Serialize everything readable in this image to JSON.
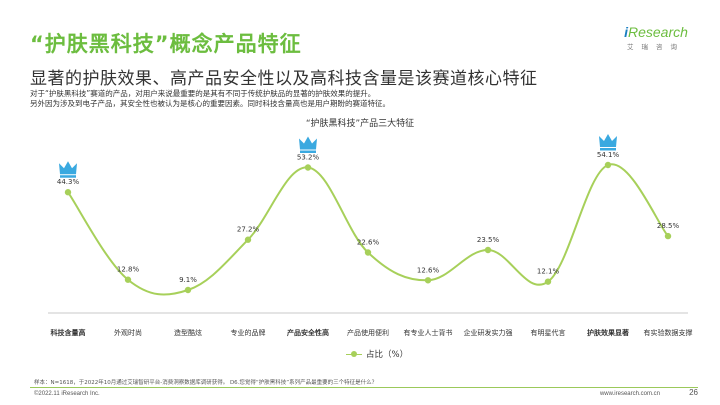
{
  "header": {
    "title": "“护肤黑科技”概念产品特征",
    "subtitle": "显著的护肤效果、高产品安全性以及高科技含量是该赛道核心特征",
    "description": [
      "对于“护肤黑科技”赛道的产品，对用户来说最重要的是其有不同于传统护肤品的显著的护肤效果的提升。",
      "另外因为涉及到电子产品，其安全性也被认为是核心的重要因素。同时科技含量高也是用户期盼的赛道特征。"
    ]
  },
  "logo": {
    "brand_i": "i",
    "brand_rest": "Research",
    "sub": "艾瑞咨询"
  },
  "colors": {
    "accent": "#6cbd3f",
    "line": "#a7d05a",
    "crown": "#3aa9e0"
  },
  "chart_data": {
    "type": "line",
    "title": "“护肤黑科技”产品三大特征",
    "categories": [
      "科技含量高",
      "外观时尚",
      "造型酷炫",
      "专业的品牌",
      "产品安全性高",
      "产品使用便利",
      "有专业人士背书",
      "企业研发实力强",
      "有明星代言",
      "护肤效果显著",
      "有实验数据支撑"
    ],
    "bold_categories": [
      0,
      4,
      9
    ],
    "crown_indices": [
      0,
      4,
      9
    ],
    "crown_icon": "crown-icon",
    "series": [
      {
        "name": "占比（%）",
        "values": [
          44.3,
          12.8,
          9.1,
          27.2,
          53.2,
          22.6,
          12.6,
          23.5,
          12.1,
          54.1,
          28.5
        ],
        "labels": [
          "44.3%",
          "12.8%",
          "9.1%",
          "27.2%",
          "53.2%",
          "22.6%",
          "12.6%",
          "23.5%",
          "12.1%",
          "54.1%",
          "28.5%"
        ]
      }
    ],
    "ylim": [
      0,
      60
    ],
    "grid": false,
    "legend_position": "bottom"
  },
  "footer": {
    "note": "样本：N=1618，于2022年10月通过艾瑞智研平台-消费洞察数据库调研获得。 D6.您觉得“护肤黑科技”系列产品最重要的三个特征是什么？",
    "copyright": "©2022.11 iResearch Inc.",
    "site": "www.iresearch.com.cn",
    "page": "26"
  }
}
